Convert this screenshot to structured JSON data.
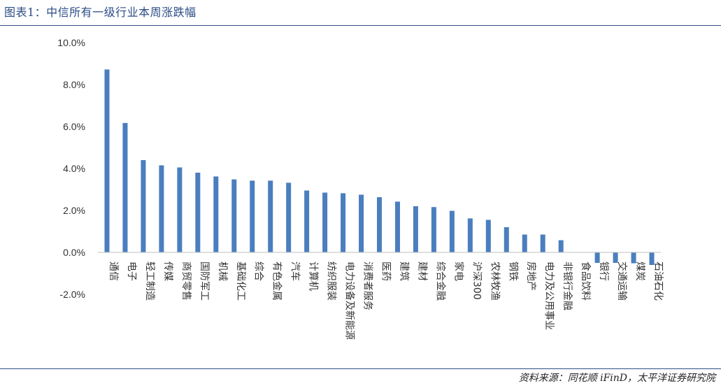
{
  "header": {
    "title": "图表1：中信所有一级行业本周涨跌幅"
  },
  "footer": {
    "source": "资料来源：同花顺 iFinD，太平洋证券研究院"
  },
  "chart_data": {
    "type": "bar",
    "title": "",
    "xlabel": "",
    "ylabel": "",
    "ylim": [
      -2.0,
      10.0
    ],
    "yticks": [
      -2.0,
      0.0,
      2.0,
      4.0,
      6.0,
      8.0,
      10.0
    ],
    "ytick_labels": [
      "-2.0%",
      "0.0%",
      "2.0%",
      "4.0%",
      "6.0%",
      "8.0%",
      "10.0%"
    ],
    "bar_color": "#4a7ebf",
    "grid": false,
    "categories": [
      "通信",
      "电子",
      "轻工制造",
      "传媒",
      "商贸零售",
      "国防军工",
      "机械",
      "基础化工",
      "综合",
      "有色金属",
      "汽车",
      "计算机",
      "纺织服装",
      "电力设备及新能源",
      "消费者服务",
      "医药",
      "建筑",
      "建材",
      "综合金融",
      "家电",
      "沪深300",
      "农林牧渔",
      "钢铁",
      "房地产",
      "电力及公用事业",
      "非银行金融",
      "食品饮料",
      "银行",
      "交通运输",
      "煤炭",
      "石油石化"
    ],
    "values": [
      8.72,
      6.17,
      4.4,
      4.15,
      4.05,
      3.8,
      3.62,
      3.48,
      3.42,
      3.42,
      3.32,
      2.95,
      2.85,
      2.82,
      2.75,
      2.63,
      2.42,
      2.2,
      2.16,
      1.98,
      1.62,
      1.55,
      1.2,
      0.85,
      0.85,
      0.58,
      0.0,
      -0.5,
      -0.5,
      -0.52,
      -0.6
    ]
  }
}
